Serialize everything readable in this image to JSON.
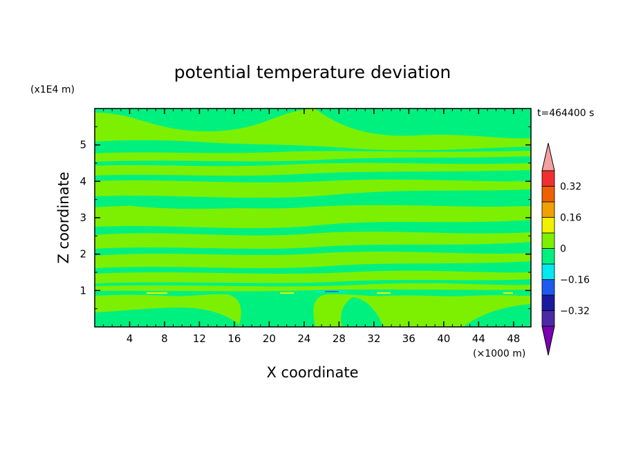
{
  "chart_data": {
    "type": "heatmap",
    "title": "potential temperature deviation",
    "xlabel": "X coordinate",
    "ylabel": "Z coordinate",
    "x_unit": "(×1000 m)",
    "y_unit": "(x1E4 m)",
    "time_label": "t=464400 s",
    "xlim": [
      0,
      50
    ],
    "ylim": [
      0,
      6
    ],
    "x_ticks": [
      4,
      8,
      12,
      16,
      20,
      24,
      28,
      32,
      36,
      40,
      44,
      48
    ],
    "y_ticks": [
      1,
      2,
      3,
      4,
      5
    ],
    "colorbar": {
      "levels": [
        -0.4,
        -0.32,
        -0.24,
        -0.16,
        -0.08,
        0,
        0.08,
        0.16,
        0.24,
        0.32,
        0.4
      ],
      "tick_labels": [
        "0.32",
        "0.16",
        "0",
        "−0.16",
        "−0.32"
      ],
      "colors": [
        "#7a00b4",
        "#4a2aa6",
        "#1a1aa0",
        "#1e5af0",
        "#00e8f0",
        "#00f080",
        "#7cf000",
        "#f0f000",
        "#f0a000",
        "#f06000",
        "#f03030",
        "#f4a0a0"
      ]
    },
    "field_summary": "Background near 0; horizontal bands alternating between level [-0.08,0] (green-cyan) and [0,0.08] (yellow-green) throughout the domain, with tiny small-amplitude features near z=1"
  }
}
